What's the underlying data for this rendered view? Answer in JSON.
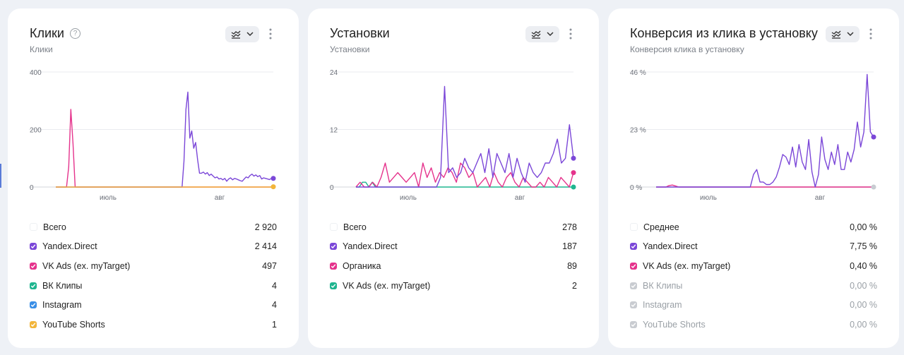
{
  "cards": [
    {
      "title": "Клики",
      "subtitle": "Клики",
      "has_help": true,
      "chart": {
        "type": "line",
        "y_ticks": [
          "400",
          "200",
          "0"
        ],
        "ylim": [
          0,
          400
        ],
        "x_ticks": [
          "июль",
          "авг"
        ],
        "series": [
          {
            "color": "#e5338c",
            "values": [
              0,
              0,
              0,
              0,
              0,
              0,
              70,
              270,
              150,
              0,
              0,
              0,
              0,
              0,
              0,
              0,
              0,
              0,
              0,
              0,
              0,
              0,
              0,
              0,
              0,
              0,
              0,
              0,
              0,
              0,
              0,
              0,
              0,
              0,
              0,
              0,
              0,
              0,
              0,
              0,
              0,
              0,
              0,
              0,
              0,
              0,
              0,
              0,
              0,
              0,
              0,
              0,
              0,
              0,
              0,
              0,
              0,
              0,
              0,
              0,
              0,
              0,
              0,
              0,
              0,
              0,
              0,
              0,
              0,
              0,
              0,
              0,
              0,
              0,
              0,
              0,
              0,
              0,
              0,
              0,
              0,
              0,
              0,
              0,
              0,
              0,
              0,
              0,
              0,
              0,
              0,
              0,
              0,
              0,
              0,
              0,
              0,
              0,
              0,
              0,
              0,
              0
            ]
          },
          {
            "color": "#7b47d8",
            "values": [
              0,
              0,
              0,
              0,
              0,
              0,
              0,
              0,
              0,
              0,
              0,
              0,
              0,
              0,
              0,
              0,
              0,
              0,
              0,
              0,
              0,
              0,
              0,
              0,
              0,
              0,
              0,
              0,
              0,
              0,
              0,
              0,
              0,
              0,
              0,
              0,
              0,
              0,
              0,
              0,
              0,
              0,
              0,
              0,
              0,
              0,
              0,
              0,
              0,
              0,
              0,
              0,
              0,
              0,
              0,
              0,
              0,
              0,
              0,
              0,
              0,
              0,
              0,
              0,
              0,
              0,
              90,
              270,
              330,
              170,
              195,
              135,
              155,
              95,
              48,
              48,
              52,
              45,
              50,
              40,
              45,
              38,
              32,
              35,
              28,
              30,
              25,
              30,
              20,
              28,
              32,
              25,
              30,
              28,
              25,
              22,
              20,
              28,
              35,
              32,
              40,
              45,
              38,
              42,
              36,
              40,
              28,
              32,
              30,
              28,
              26,
              30,
              32
            ]
          },
          {
            "color": "#f2b53a",
            "values": [
              0,
              0,
              0,
              0,
              0,
              0,
              0,
              0,
              0,
              0,
              0,
              0,
              0,
              0,
              0,
              0,
              0,
              0,
              0,
              0,
              0,
              0,
              0,
              0,
              0,
              0,
              0,
              0,
              0,
              0,
              0,
              0,
              0,
              0,
              0,
              0,
              0,
              0,
              0,
              0,
              0,
              0,
              0,
              0,
              0,
              0,
              0,
              0,
              0,
              0,
              0,
              0,
              0,
              0,
              0,
              0,
              0,
              0,
              0,
              0,
              0,
              0,
              0,
              0,
              0,
              0,
              0,
              0,
              0,
              0,
              0,
              0,
              0,
              0,
              0,
              0,
              0,
              0,
              0,
              0,
              0,
              0,
              0,
              0,
              0,
              0,
              0,
              0,
              0,
              0,
              0,
              0,
              0,
              0,
              0,
              0,
              0,
              0,
              0,
              0,
              0,
              0,
              0,
              0,
              0,
              0,
              0,
              0,
              0,
              0,
              0,
              0
            ]
          }
        ],
        "end_dots": [
          {
            "color": "#7b47d8",
            "value": 30
          },
          {
            "color": "#f2b53a",
            "value": 1
          }
        ]
      },
      "legend": [
        {
          "label": "Всего",
          "value": "2 920",
          "checked": false,
          "color": "#ffffff",
          "muted": false
        },
        {
          "label": "Yandex.Direct",
          "value": "2 414",
          "checked": true,
          "color": "#7b47d8",
          "muted": false
        },
        {
          "label": "VK Ads (ex. myTarget)",
          "value": "497",
          "checked": true,
          "color": "#e5338c",
          "muted": false
        },
        {
          "label": "ВК Клипы",
          "value": "4",
          "checked": true,
          "color": "#1fb58f",
          "muted": false
        },
        {
          "label": "Instagram",
          "value": "4",
          "checked": true,
          "color": "#3a8ee6",
          "muted": false
        },
        {
          "label": "YouTube Shorts",
          "value": "1",
          "checked": true,
          "color": "#f2b53a",
          "muted": false
        }
      ]
    },
    {
      "title": "Установки",
      "subtitle": "Установки",
      "has_help": false,
      "chart": {
        "type": "line",
        "y_ticks": [
          "24",
          "12",
          "0"
        ],
        "ylim": [
          0,
          24
        ],
        "x_ticks": [
          "июль",
          "авг"
        ],
        "series": [
          {
            "color": "#1fb58f",
            "values": [
              0,
              0,
              1,
              1,
              0,
              1,
              0,
              0,
              0,
              0,
              0,
              0,
              0,
              0,
              0,
              0,
              0,
              0,
              0,
              0,
              0,
              0,
              0,
              0,
              0,
              0,
              0,
              0,
              0,
              0,
              0,
              0,
              0,
              0,
              0,
              0,
              0,
              0,
              0,
              0,
              0,
              0,
              0,
              0,
              0,
              0,
              0,
              0,
              0,
              0,
              0,
              0,
              0,
              0,
              0,
              0,
              0,
              0,
              0,
              0,
              0,
              0,
              0,
              0,
              0,
              0,
              0,
              0
            ]
          },
          {
            "color": "#e5338c",
            "values": [
              0,
              1,
              0,
              0,
              1,
              0,
              2,
              5,
              1,
              2,
              3,
              2,
              1,
              2,
              3,
              0,
              5,
              2,
              4,
              1,
              3,
              2,
              4,
              3,
              1,
              5,
              4,
              2,
              3,
              0,
              1,
              2,
              0,
              3,
              1,
              0,
              2,
              3,
              1,
              0,
              2,
              1,
              0,
              0,
              1,
              0,
              2,
              1,
              0,
              2,
              1,
              0,
              3
            ]
          },
          {
            "color": "#7b47d8",
            "values": [
              0,
              0,
              0,
              0,
              0,
              0,
              0,
              0,
              0,
              0,
              0,
              0,
              0,
              0,
              0,
              0,
              0,
              0,
              0,
              0,
              0,
              2,
              21,
              3,
              4,
              2,
              3,
              6,
              4,
              3,
              5,
              7,
              3,
              8,
              2,
              7,
              5,
              3,
              7,
              2,
              6,
              3,
              1,
              5,
              3,
              2,
              3,
              5,
              5,
              7,
              10,
              5,
              6,
              13,
              6
            ]
          }
        ],
        "end_dots": [
          {
            "color": "#7b47d8",
            "value": 6
          },
          {
            "color": "#e5338c",
            "value": 3
          },
          {
            "color": "#1fb58f",
            "value": 0
          }
        ]
      },
      "legend": [
        {
          "label": "Всего",
          "value": "278",
          "checked": false,
          "color": "#ffffff",
          "muted": false
        },
        {
          "label": "Yandex.Direct",
          "value": "187",
          "checked": true,
          "color": "#7b47d8",
          "muted": false
        },
        {
          "label": "Органика",
          "value": "89",
          "checked": true,
          "color": "#e5338c",
          "muted": false
        },
        {
          "label": "VK Ads (ex. myTarget)",
          "value": "2",
          "checked": true,
          "color": "#1fb58f",
          "muted": false
        }
      ]
    },
    {
      "title": "Конверсия из клика в установку",
      "subtitle": "Конверсия клика в установку",
      "has_help": false,
      "chart": {
        "type": "line",
        "y_ticks": [
          "46 %",
          "23 %",
          "0 %"
        ],
        "ylim": [
          0,
          46
        ],
        "x_ticks": [
          "июль",
          "авг"
        ],
        "series": [
          {
            "color": "#c8ccd2",
            "values": [
              0,
              0,
              0,
              0,
              0,
              0,
              0,
              0,
              0,
              0,
              0,
              0,
              0,
              0,
              0,
              0,
              0,
              0,
              0,
              0,
              0,
              0,
              0,
              0,
              0,
              0,
              0,
              0,
              0,
              0,
              0,
              0,
              0,
              0,
              0,
              0,
              0,
              0,
              0,
              0,
              0,
              0,
              0,
              0,
              0,
              0,
              0,
              0,
              0,
              0,
              0,
              0,
              0,
              0,
              0,
              0,
              0,
              0,
              0,
              0,
              0,
              0,
              0,
              0,
              0,
              0,
              0,
              0
            ]
          },
          {
            "color": "#e5338c",
            "values": [
              0,
              0,
              0,
              0,
              0.6,
              0.8,
              0.4,
              0,
              0,
              0,
              0,
              0,
              0,
              0,
              0,
              0,
              0,
              0,
              0,
              0,
              0,
              0,
              0,
              0,
              0,
              0,
              0,
              0,
              0,
              0,
              0,
              0,
              0,
              0,
              0,
              0,
              0,
              0,
              0,
              0,
              0,
              0,
              0,
              0,
              0,
              0,
              0,
              0,
              0,
              0,
              0,
              0,
              0,
              0,
              0,
              0,
              0,
              0,
              0,
              0,
              0,
              0,
              0,
              0,
              0,
              0,
              0,
              0
            ]
          },
          {
            "color": "#7b47d8",
            "values": [
              0,
              0,
              0,
              0,
              0,
              0,
              0,
              0,
              0,
              0,
              0,
              0,
              0,
              0,
              0,
              0,
              0,
              0,
              0,
              0,
              0,
              0,
              0,
              0,
              0,
              0,
              0,
              0,
              0,
              0,
              5,
              7,
              2,
              2,
              1,
              1,
              2,
              4,
              8,
              13,
              12,
              9,
              16,
              8,
              17,
              10,
              7,
              19,
              6,
              0,
              5,
              20,
              11,
              7,
              14,
              9,
              17,
              7,
              7,
              14,
              10,
              15,
              26,
              16,
              22,
              45,
              22,
              20
            ]
          }
        ],
        "end_dots": [
          {
            "color": "#7b47d8",
            "value": 20
          },
          {
            "color": "#c8ccd2",
            "value": 0
          }
        ]
      },
      "legend": [
        {
          "label": "Среднее",
          "value": "0,00 %",
          "checked": false,
          "color": "#ffffff",
          "muted": false
        },
        {
          "label": "Yandex.Direct",
          "value": "7,75 %",
          "checked": true,
          "color": "#7b47d8",
          "muted": false
        },
        {
          "label": "VK Ads (ex. myTarget)",
          "value": "0,40 %",
          "checked": true,
          "color": "#e5338c",
          "muted": false
        },
        {
          "label": "ВК Клипы",
          "value": "0,00 %",
          "checked": true,
          "color": "#c9ccd1",
          "muted": true
        },
        {
          "label": "Instagram",
          "value": "0,00 %",
          "checked": true,
          "color": "#c9ccd1",
          "muted": true
        },
        {
          "label": "YouTube Shorts",
          "value": "0,00 %",
          "checked": true,
          "color": "#c9ccd1",
          "muted": true
        }
      ]
    }
  ],
  "chart_data": [
    {
      "type": "line",
      "title": "Клики",
      "subtitle": "Клики",
      "ylim": [
        0,
        400
      ],
      "y_ticks": [
        "400",
        "200",
        "0"
      ],
      "x_ticks": [
        "июль",
        "авг"
      ],
      "series": [
        {
          "name": "Yandex.Direct",
          "total": "2 414"
        },
        {
          "name": "VK Ads (ex. myTarget)",
          "total": "497"
        },
        {
          "name": "ВК Клипы",
          "total": "4"
        },
        {
          "name": "Instagram",
          "total": "4"
        },
        {
          "name": "YouTube Shorts",
          "total": "1"
        }
      ],
      "total": "2 920"
    },
    {
      "type": "line",
      "title": "Установки",
      "subtitle": "Установки",
      "ylim": [
        0,
        24
      ],
      "y_ticks": [
        "24",
        "12",
        "0"
      ],
      "x_ticks": [
        "июль",
        "авг"
      ],
      "series": [
        {
          "name": "Yandex.Direct",
          "total": "187"
        },
        {
          "name": "Органика",
          "total": "89"
        },
        {
          "name": "VK Ads (ex. myTarget)",
          "total": "2"
        }
      ],
      "total": "278"
    },
    {
      "type": "line",
      "title": "Конверсия из клика в установку",
      "subtitle": "Конверсия клика в установку",
      "ylim": [
        0,
        46
      ],
      "y_ticks": [
        "46 %",
        "23 %",
        "0 %"
      ],
      "x_ticks": [
        "июль",
        "авг"
      ],
      "series": [
        {
          "name": "Yandex.Direct",
          "total": "7,75 %"
        },
        {
          "name": "VK Ads (ex. myTarget)",
          "total": "0,40 %"
        },
        {
          "name": "ВК Клипы",
          "total": "0,00 %"
        },
        {
          "name": "Instagram",
          "total": "0,00 %"
        },
        {
          "name": "YouTube Shorts",
          "total": "0,00 %"
        }
      ],
      "total": "0,00 %"
    }
  ]
}
